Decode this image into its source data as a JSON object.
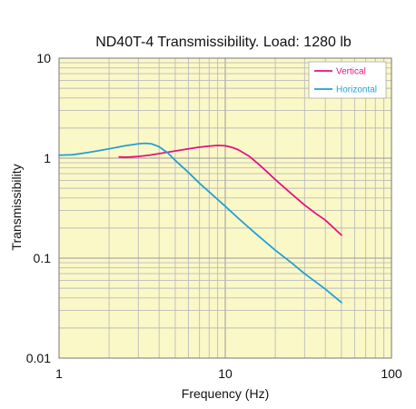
{
  "chart_data": {
    "type": "line",
    "title": "ND40T-4 Transmissibility. Load: 1280 lb",
    "xlabel": "Frequency (Hz)",
    "ylabel": "Transmissibility",
    "xscale": "log",
    "yscale": "log",
    "xlim": [
      1,
      100
    ],
    "ylim": [
      0.01,
      10
    ],
    "x_ticks": [
      {
        "value": 1,
        "label": "1"
      },
      {
        "value": 10,
        "label": "10"
      },
      {
        "value": 100,
        "label": "100"
      }
    ],
    "y_ticks": [
      {
        "value": 0.01,
        "label": "0.01"
      },
      {
        "value": 0.1,
        "label": "0.1"
      },
      {
        "value": 1,
        "label": "1"
      },
      {
        "value": 10,
        "label": "10"
      }
    ],
    "grid": true,
    "legend_position": "top-right",
    "colors": {
      "background": "#fbf8c8",
      "grid": "#bbbbbb",
      "frame": "#777777"
    },
    "series": [
      {
        "name": "Vertical",
        "color": "#e3137f",
        "points": [
          [
            2.3,
            1.03
          ],
          [
            2.5,
            1.02
          ],
          [
            3,
            1.04
          ],
          [
            3.5,
            1.07
          ],
          [
            4,
            1.11
          ],
          [
            5,
            1.18
          ],
          [
            6,
            1.24
          ],
          [
            7,
            1.29
          ],
          [
            8,
            1.32
          ],
          [
            9,
            1.34
          ],
          [
            10,
            1.33
          ],
          [
            11,
            1.28
          ],
          [
            12,
            1.21
          ],
          [
            14,
            1.04
          ],
          [
            16,
            0.86
          ],
          [
            18,
            0.72
          ],
          [
            20,
            0.61
          ],
          [
            25,
            0.44
          ],
          [
            30,
            0.34
          ],
          [
            35,
            0.28
          ],
          [
            40,
            0.24
          ],
          [
            45,
            0.2
          ],
          [
            50,
            0.17
          ]
        ]
      },
      {
        "name": "Horizontal",
        "color": "#22a1d3",
        "points": [
          [
            1,
            1.07
          ],
          [
            1.2,
            1.08
          ],
          [
            1.5,
            1.14
          ],
          [
            2,
            1.24
          ],
          [
            2.5,
            1.33
          ],
          [
            3,
            1.39
          ],
          [
            3.3,
            1.41
          ],
          [
            3.6,
            1.39
          ],
          [
            4,
            1.3
          ],
          [
            4.5,
            1.13
          ],
          [
            5,
            0.95
          ],
          [
            6,
            0.72
          ],
          [
            7,
            0.56
          ],
          [
            8,
            0.46
          ],
          [
            10,
            0.33
          ],
          [
            12,
            0.25
          ],
          [
            15,
            0.18
          ],
          [
            20,
            0.12
          ],
          [
            25,
            0.09
          ],
          [
            30,
            0.07
          ],
          [
            40,
            0.049
          ],
          [
            50,
            0.036
          ]
        ]
      }
    ]
  }
}
